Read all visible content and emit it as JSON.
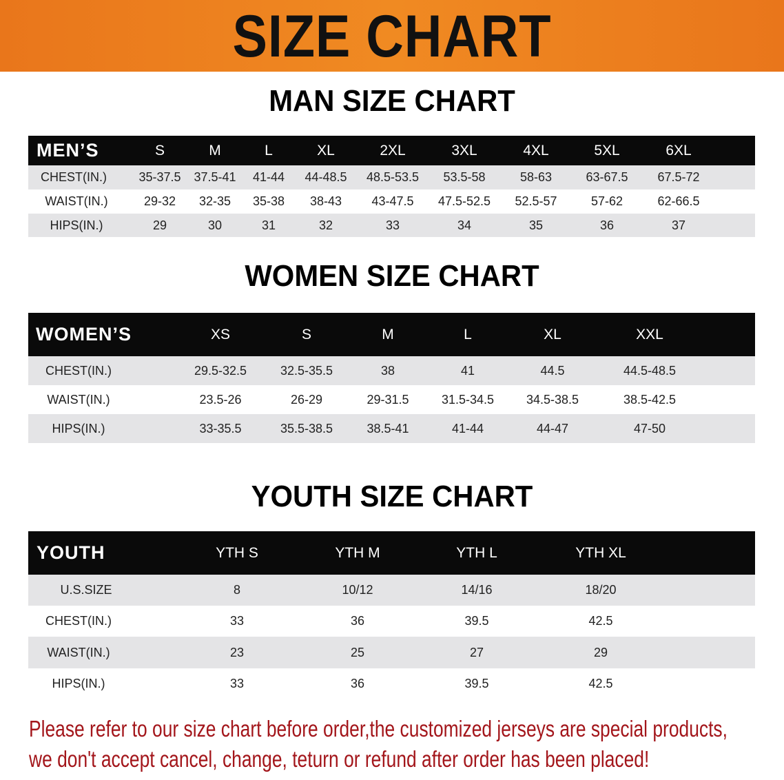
{
  "banner": {
    "title": "SIZE CHART",
    "color": "#ee8220"
  },
  "men": {
    "title": "MAN SIZE CHART",
    "headers": [
      "MEN’S",
      "S",
      "M",
      "L",
      "XL",
      "2XL",
      "3XL",
      "4XL",
      "5XL",
      "6XL"
    ],
    "rows": [
      [
        "CHEST(IN.)",
        "35-37.5",
        "37.5-41",
        "41-44",
        "44-48.5",
        "48.5-53.5",
        "53.5-58",
        "58-63",
        "63-67.5",
        "67.5-72"
      ],
      [
        "WAIST(IN.)",
        "29-32",
        "32-35",
        "35-38",
        "38-43",
        "43-47.5",
        "47.5-52.5",
        "52.5-57",
        "57-62",
        "62-66.5"
      ],
      [
        "HIPS(IN.)",
        "29",
        "30",
        "31",
        "32",
        "33",
        "34",
        "35",
        "36",
        "37"
      ]
    ]
  },
  "women": {
    "title": "WOMEN SIZE CHART",
    "headers": [
      "WOMEN’S",
      "XS",
      "S",
      "M",
      "L",
      "XL",
      "XXL"
    ],
    "rows": [
      [
        "CHEST(IN.)",
        "29.5-32.5",
        "32.5-35.5",
        "38",
        "41",
        "44.5",
        "44.5-48.5"
      ],
      [
        "WAIST(IN.)",
        "23.5-26",
        "26-29",
        "29-31.5",
        "31.5-34.5",
        "34.5-38.5",
        "38.5-42.5"
      ],
      [
        "HIPS(IN.)",
        "33-35.5",
        "35.5-38.5",
        "38.5-41",
        "41-44",
        "44-47",
        "47-50"
      ]
    ]
  },
  "youth": {
    "title": "YOUTH SIZE CHART",
    "headers": [
      "YOUTH",
      "YTH S",
      "YTH M",
      "YTH L",
      "YTH XL"
    ],
    "rows": [
      [
        "U.S.SIZE",
        "8",
        "10/12",
        "14/16",
        "18/20"
      ],
      [
        "CHEST(IN.)",
        "33",
        "36",
        "39.5",
        "42.5"
      ],
      [
        "WAIST(IN.)",
        "23",
        "25",
        "27",
        "29"
      ],
      [
        "HIPS(IN.)",
        "33",
        "36",
        "39.5",
        "42.5"
      ]
    ]
  },
  "note": {
    "line1": "Please refer to our size chart before order,the customized jerseys are special products,",
    "line2": "we don't accept cancel, change, teturn or refund after order has been placed!",
    "color": "#a3161b"
  }
}
